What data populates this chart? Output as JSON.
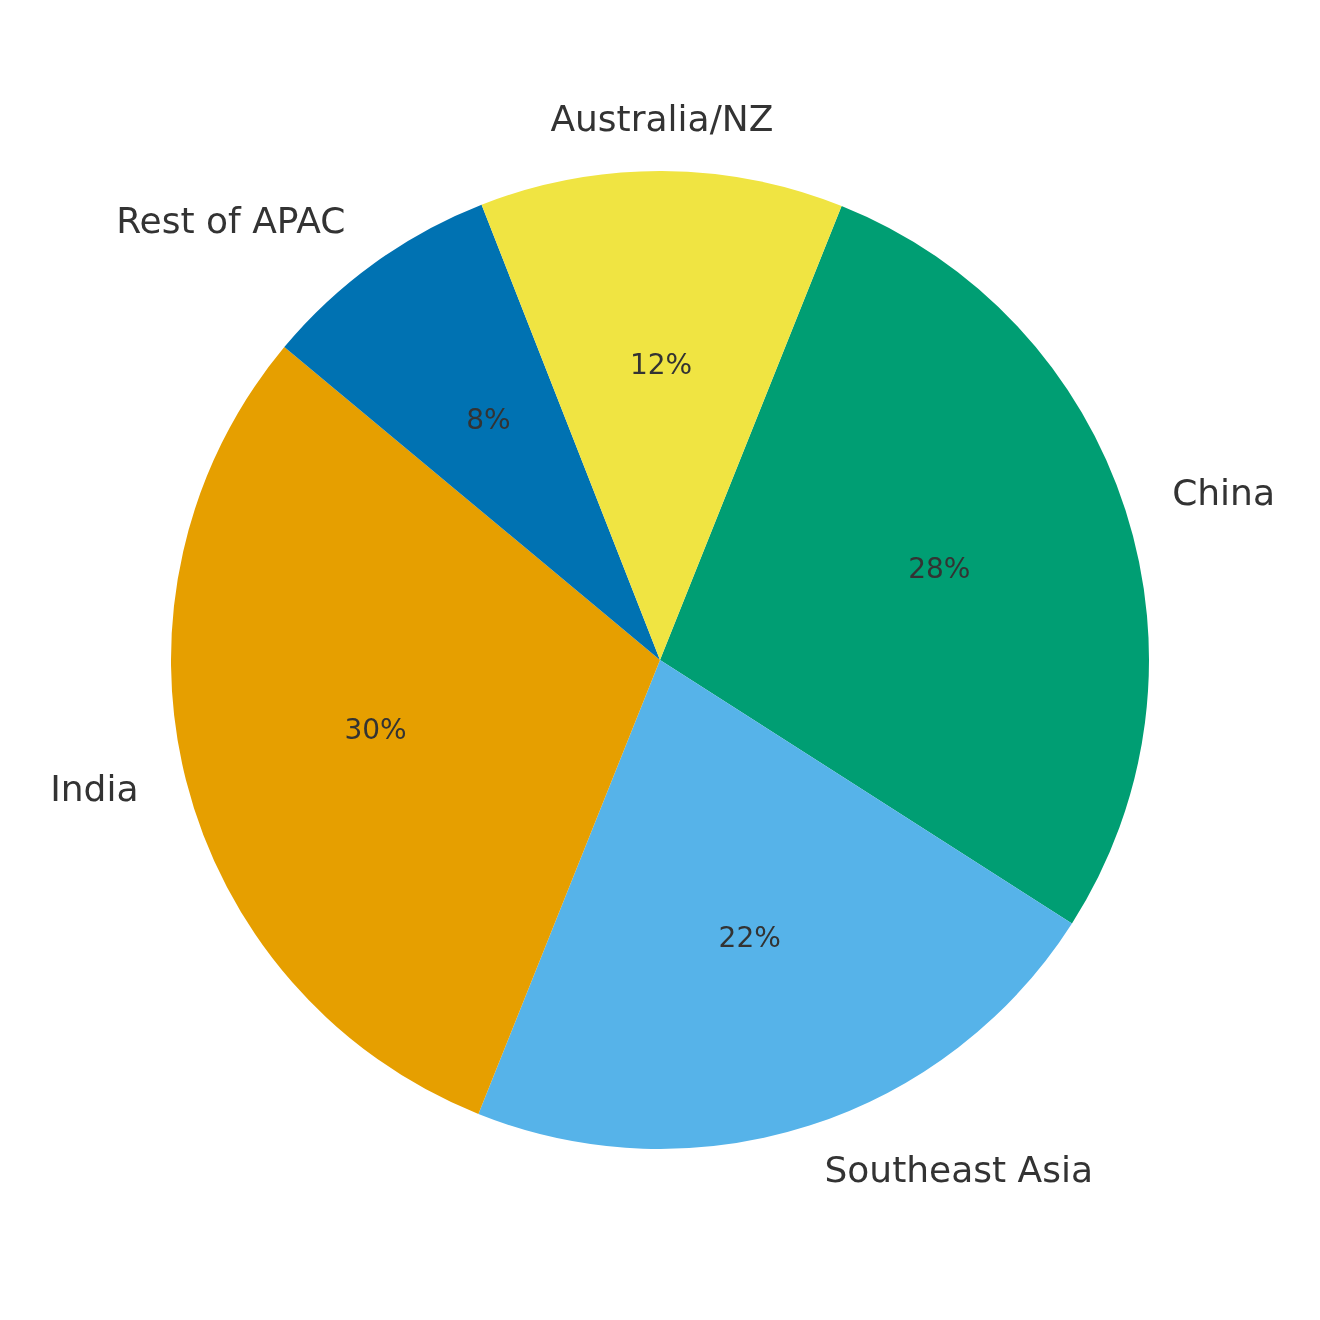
{
  "chart_data": {
    "type": "pie",
    "categories": [
      "China",
      "Southeast Asia",
      "India",
      "Rest of APAC",
      "Australia/NZ"
    ],
    "values": [
      28,
      22,
      30,
      8,
      12
    ],
    "colors": [
      "#009e73",
      "#56b3e9",
      "#e69f00",
      "#0072b2",
      "#f0e442"
    ],
    "value_labels": [
      "28%",
      "22%",
      "30%",
      "8%",
      "12%"
    ],
    "legend": false
  }
}
